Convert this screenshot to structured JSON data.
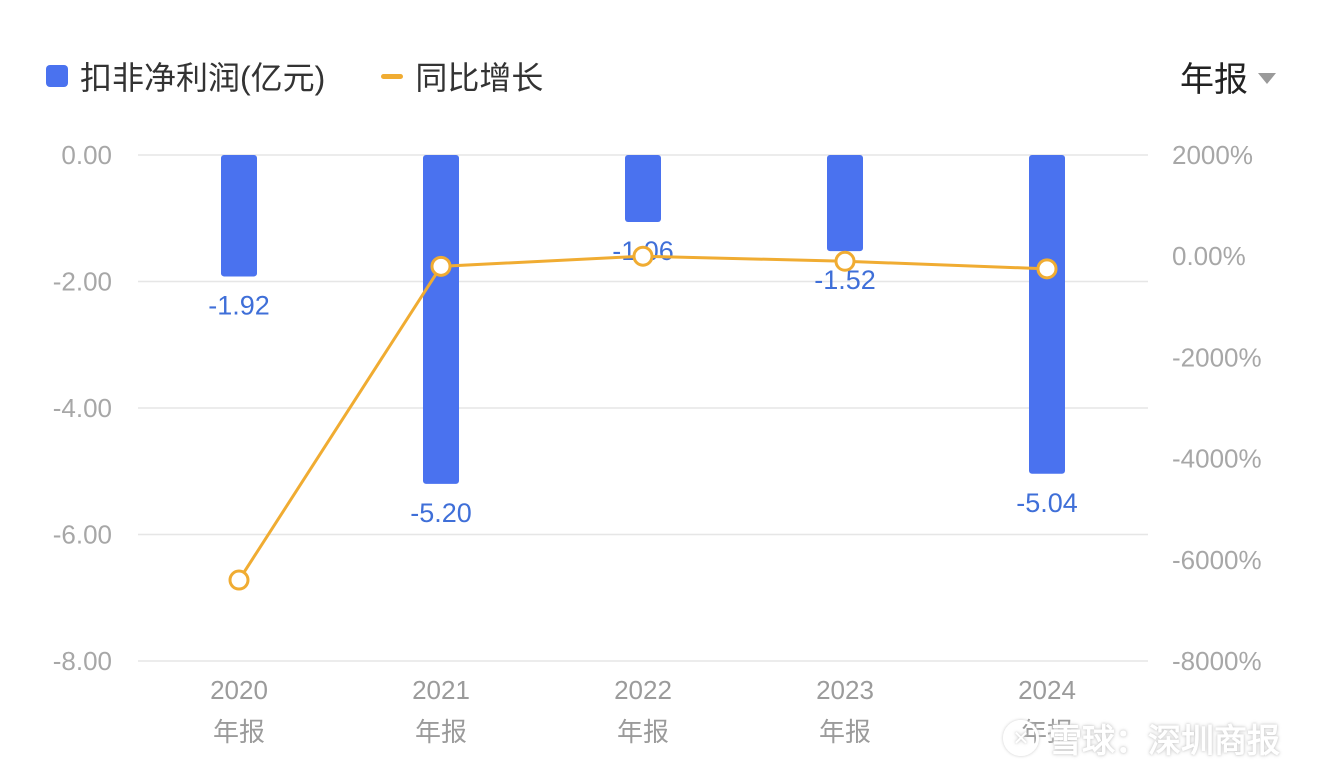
{
  "legend": {
    "bar_label": "扣非净利润(亿元)",
    "line_label": "同比增长"
  },
  "period_selector": {
    "value": "年报",
    "icon": "chevron-down-icon"
  },
  "watermark": {
    "text": "雪球：深圳商报",
    "logo_icon": "snowball-logo"
  },
  "colors": {
    "bar": "#4a72ef",
    "line": "#f0ac32",
    "label": "#3f6fd8",
    "grid": "#e6e6e6"
  },
  "chart_data": {
    "type": "bar",
    "categories": [
      "2020\n年报",
      "2021\n年报",
      "2022\n年报",
      "2023\n年报",
      "2024\n年报"
    ],
    "series": [
      {
        "name": "扣非净利润(亿元)",
        "type": "bar",
        "axis": "left",
        "values": [
          -1.92,
          -5.2,
          -1.06,
          -1.52,
          -5.04
        ],
        "data_labels": [
          "-1.92",
          "-5.20",
          "-1.06",
          "-1.52",
          "-5.04"
        ]
      },
      {
        "name": "同比增长",
        "type": "line",
        "axis": "right",
        "unit": "%",
        "values": [
          -6400,
          -200,
          0,
          -100,
          -250
        ]
      }
    ],
    "y_left": {
      "ylim": [
        -8,
        0
      ],
      "ticks": [
        "0.00",
        "-2.00",
        "-4.00",
        "-6.00",
        "-8.00"
      ]
    },
    "y_right": {
      "ylim": [
        -8000,
        2000
      ],
      "ticks": [
        "2000%",
        "0.00%",
        "-2000%",
        "-4000%",
        "-6000%",
        "-8000%"
      ]
    },
    "grid": true,
    "legend_position": "top-left"
  }
}
